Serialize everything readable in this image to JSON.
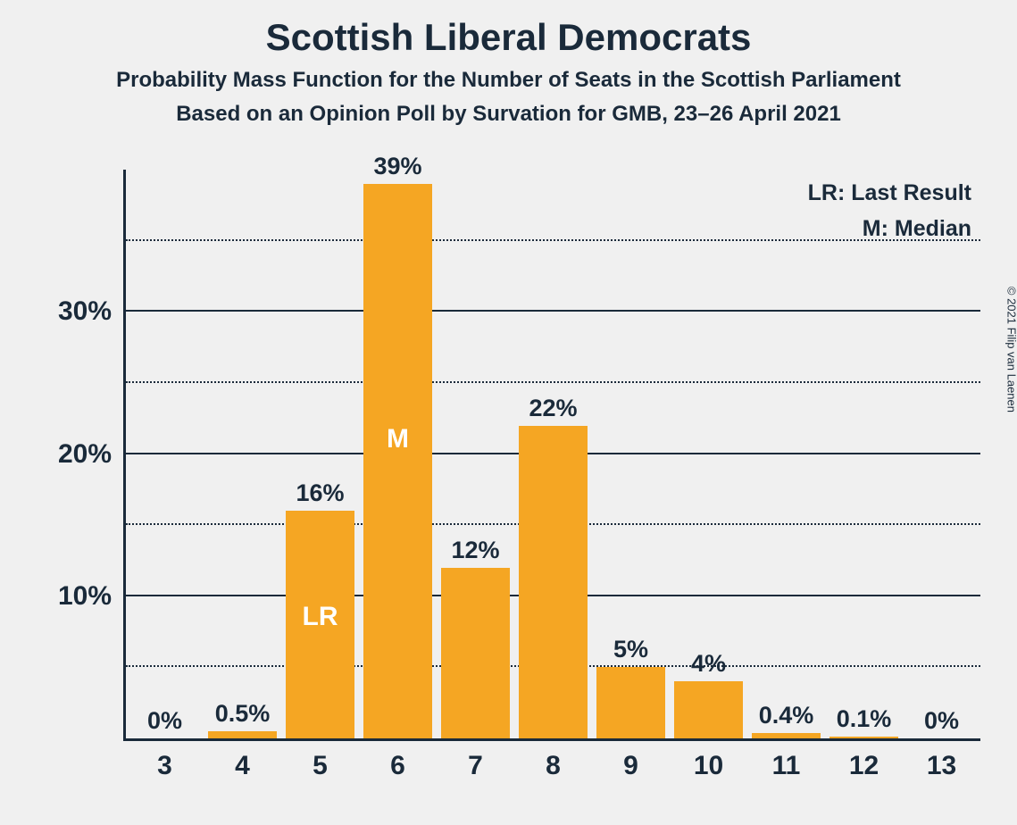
{
  "copyright": "© 2021 Filip van Laenen",
  "titles": {
    "main": "Scottish Liberal Democrats",
    "sub1": "Probability Mass Function for the Number of Seats in the Scottish Parliament",
    "sub2": "Based on an Opinion Poll by Survation for GMB, 23–26 April 2021"
  },
  "legend": {
    "lr": "LR: Last Result",
    "m": "M: Median"
  },
  "chart": {
    "type": "bar",
    "bar_color": "#f5a623",
    "text_color": "#1a2a3a",
    "marker_color": "#ffffff",
    "background_color": "#f0f0f0",
    "ymax": 40,
    "y_major_ticks": [
      10,
      20,
      30
    ],
    "y_minor_ticks": [
      5,
      15,
      25,
      35
    ],
    "categories": [
      "3",
      "4",
      "5",
      "6",
      "7",
      "8",
      "9",
      "10",
      "11",
      "12",
      "13"
    ],
    "values": [
      0,
      0.5,
      16,
      39,
      12,
      22,
      5,
      4,
      0.4,
      0.1,
      0
    ],
    "labels": [
      "0%",
      "0.5%",
      "16%",
      "39%",
      "12%",
      "22%",
      "5%",
      "4%",
      "0.4%",
      "0.1%",
      "0%"
    ],
    "markers": [
      {
        "index": 2,
        "text": "LR",
        "vpos": 7.5
      },
      {
        "index": 3,
        "text": "M",
        "vpos": 20
      }
    ],
    "bar_width_pct": 88,
    "label_fontsize": 27,
    "axis_fontsize": 30
  }
}
